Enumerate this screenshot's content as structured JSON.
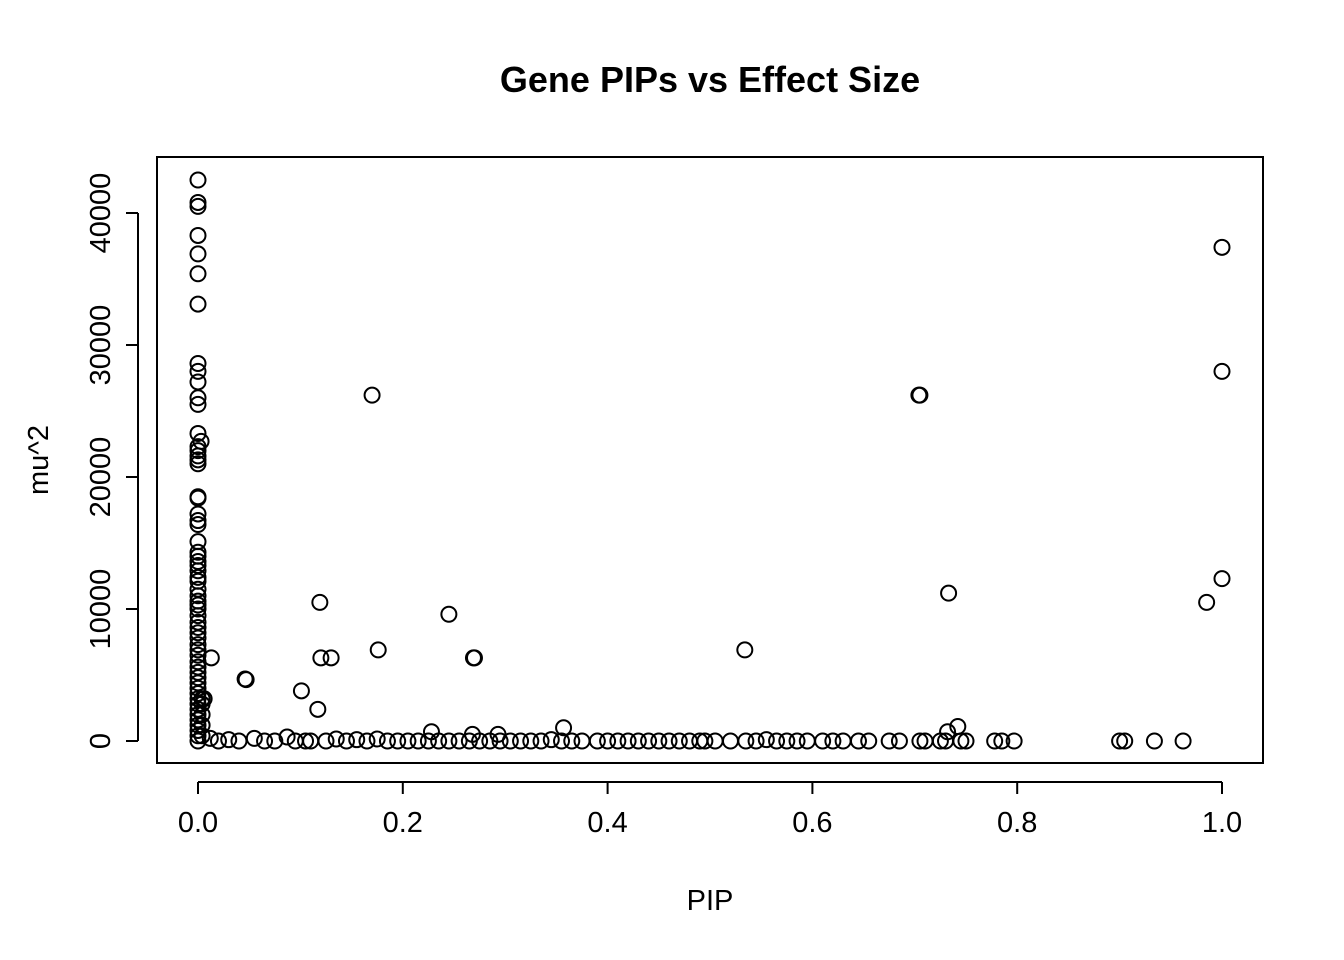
{
  "chart_data": {
    "type": "scatter",
    "title": "Gene PIPs vs Effect Size",
    "xlabel": "PIP",
    "ylabel": "mu^2",
    "xlim": [
      0,
      1
    ],
    "ylim": [
      0,
      42500
    ],
    "xticks": [
      0,
      0.2,
      0.4,
      0.6,
      0.8,
      1.0
    ],
    "xtick_labels": [
      "0.0",
      "0.2",
      "0.4",
      "0.6",
      "0.8",
      "1.0"
    ],
    "yticks": [
      0,
      10000,
      20000,
      30000,
      40000
    ],
    "ytick_labels": [
      "0",
      "10000",
      "20000",
      "30000",
      "40000"
    ],
    "grid": false,
    "legend": "none",
    "series": [
      {
        "values": [
          {
            "x": 0.0,
            "y": 42500
          },
          {
            "x": 0.0,
            "y": 40800
          },
          {
            "x": 0.0,
            "y": 40500
          },
          {
            "x": 0.0,
            "y": 38300
          },
          {
            "x": 0.0,
            "y": 36900
          },
          {
            "x": 0.0,
            "y": 35400
          },
          {
            "x": 0.0,
            "y": 33100
          },
          {
            "x": 0.0,
            "y": 28600
          },
          {
            "x": 0.0,
            "y": 28000
          },
          {
            "x": 0.0,
            "y": 27200
          },
          {
            "x": 0.0,
            "y": 26000
          },
          {
            "x": 0.0,
            "y": 25500
          },
          {
            "x": 0.0,
            "y": 23300
          },
          {
            "x": 0.003,
            "y": 22700
          },
          {
            "x": 0.0,
            "y": 22300
          },
          {
            "x": 0.0,
            "y": 22000
          },
          {
            "x": 0.0,
            "y": 21600
          },
          {
            "x": 0.0,
            "y": 21300
          },
          {
            "x": 0.0,
            "y": 21000
          },
          {
            "x": 0.0,
            "y": 18500
          },
          {
            "x": 0.0,
            "y": 18400
          },
          {
            "x": 0.0,
            "y": 17200
          },
          {
            "x": 0.0,
            "y": 16700
          },
          {
            "x": 0.0,
            "y": 16400
          },
          {
            "x": 0.0,
            "y": 15100
          },
          {
            "x": 0.0,
            "y": 14300
          },
          {
            "x": 0.0,
            "y": 14000
          },
          {
            "x": 0.0,
            "y": 13600
          },
          {
            "x": 0.0,
            "y": 13300
          },
          {
            "x": 0.0,
            "y": 12900
          },
          {
            "x": 0.0,
            "y": 12400
          },
          {
            "x": 0.0,
            "y": 12100
          },
          {
            "x": 0.0,
            "y": 11500
          },
          {
            "x": 0.0,
            "y": 11000
          },
          {
            "x": 0.0,
            "y": 10600
          },
          {
            "x": 0.0,
            "y": 10300
          },
          {
            "x": 0.0,
            "y": 10000
          },
          {
            "x": 0.0,
            "y": 9500
          },
          {
            "x": 0.0,
            "y": 9000
          },
          {
            "x": 0.0,
            "y": 8600
          },
          {
            "x": 0.0,
            "y": 8200
          },
          {
            "x": 0.0,
            "y": 7800
          },
          {
            "x": 0.0,
            "y": 7300
          },
          {
            "x": 0.0,
            "y": 6900
          },
          {
            "x": 0.0,
            "y": 6500
          },
          {
            "x": 0.0,
            "y": 6000
          },
          {
            "x": 0.0,
            "y": 5600
          },
          {
            "x": 0.0,
            "y": 5200
          },
          {
            "x": 0.0,
            "y": 4800
          },
          {
            "x": 0.0,
            "y": 4400
          },
          {
            "x": 0.0,
            "y": 4000
          },
          {
            "x": 0.0,
            "y": 3600
          },
          {
            "x": 0.0,
            "y": 3200
          },
          {
            "x": 0.0,
            "y": 2800
          },
          {
            "x": 0.0,
            "y": 2400
          },
          {
            "x": 0.0,
            "y": 2000
          },
          {
            "x": 0.0,
            "y": 1600
          },
          {
            "x": 0.0,
            "y": 1200
          },
          {
            "x": 0.0,
            "y": 800
          },
          {
            "x": 0.0,
            "y": 400
          },
          {
            "x": 0.0,
            "y": 0
          },
          {
            "x": 0.004,
            "y": 3200
          },
          {
            "x": 0.006,
            "y": 3200
          },
          {
            "x": 0.004,
            "y": 2800
          },
          {
            "x": 0.004,
            "y": 2000
          },
          {
            "x": 0.004,
            "y": 1200
          },
          {
            "x": 0.004,
            "y": 400
          },
          {
            "x": 0.013,
            "y": 6300
          },
          {
            "x": 0.046,
            "y": 4700
          },
          {
            "x": 0.047,
            "y": 4650
          },
          {
            "x": 0.101,
            "y": 3800
          },
          {
            "x": 0.117,
            "y": 2400
          },
          {
            "x": 0.119,
            "y": 10500
          },
          {
            "x": 0.12,
            "y": 6300
          },
          {
            "x": 0.13,
            "y": 6300
          },
          {
            "x": 0.17,
            "y": 26200
          },
          {
            "x": 0.176,
            "y": 6900
          },
          {
            "x": 0.245,
            "y": 9600
          },
          {
            "x": 0.269,
            "y": 6300
          },
          {
            "x": 0.27,
            "y": 6300
          },
          {
            "x": 0.228,
            "y": 700
          },
          {
            "x": 0.268,
            "y": 500
          },
          {
            "x": 0.293,
            "y": 500
          },
          {
            "x": 0.357,
            "y": 1000
          },
          {
            "x": 0.534,
            "y": 6900
          },
          {
            "x": 0.704,
            "y": 26200
          },
          {
            "x": 0.705,
            "y": 26200
          },
          {
            "x": 0.733,
            "y": 11200
          },
          {
            "x": 0.732,
            "y": 700
          },
          {
            "x": 0.742,
            "y": 1100
          },
          {
            "x": 0.985,
            "y": 10500
          },
          {
            "x": 1.0,
            "y": 37400
          },
          {
            "x": 1.0,
            "y": 28000
          },
          {
            "x": 1.0,
            "y": 12300
          },
          {
            "x": 0.012,
            "y": 200
          },
          {
            "x": 0.02,
            "y": 0
          },
          {
            "x": 0.03,
            "y": 100
          },
          {
            "x": 0.04,
            "y": 0
          },
          {
            "x": 0.055,
            "y": 200
          },
          {
            "x": 0.065,
            "y": 0
          },
          {
            "x": 0.075,
            "y": 0
          },
          {
            "x": 0.087,
            "y": 300
          },
          {
            "x": 0.095,
            "y": 0
          },
          {
            "x": 0.105,
            "y": 0
          },
          {
            "x": 0.11,
            "y": 0
          },
          {
            "x": 0.125,
            "y": 0
          },
          {
            "x": 0.135,
            "y": 150
          },
          {
            "x": 0.145,
            "y": 0
          },
          {
            "x": 0.155,
            "y": 100
          },
          {
            "x": 0.165,
            "y": 0
          },
          {
            "x": 0.175,
            "y": 150
          },
          {
            "x": 0.185,
            "y": 0
          },
          {
            "x": 0.195,
            "y": 0
          },
          {
            "x": 0.205,
            "y": 0
          },
          {
            "x": 0.215,
            "y": 0
          },
          {
            "x": 0.225,
            "y": 0
          },
          {
            "x": 0.235,
            "y": 0
          },
          {
            "x": 0.245,
            "y": 0
          },
          {
            "x": 0.255,
            "y": 0
          },
          {
            "x": 0.265,
            "y": 0
          },
          {
            "x": 0.275,
            "y": 0
          },
          {
            "x": 0.285,
            "y": 0
          },
          {
            "x": 0.295,
            "y": 0
          },
          {
            "x": 0.305,
            "y": 0
          },
          {
            "x": 0.315,
            "y": 0
          },
          {
            "x": 0.325,
            "y": 0
          },
          {
            "x": 0.335,
            "y": 0
          },
          {
            "x": 0.345,
            "y": 100
          },
          {
            "x": 0.355,
            "y": 0
          },
          {
            "x": 0.365,
            "y": 0
          },
          {
            "x": 0.375,
            "y": 0
          },
          {
            "x": 0.39,
            "y": 0
          },
          {
            "x": 0.4,
            "y": 0
          },
          {
            "x": 0.41,
            "y": 0
          },
          {
            "x": 0.42,
            "y": 0
          },
          {
            "x": 0.43,
            "y": 0
          },
          {
            "x": 0.44,
            "y": 0
          },
          {
            "x": 0.45,
            "y": 0
          },
          {
            "x": 0.46,
            "y": 0
          },
          {
            "x": 0.47,
            "y": 0
          },
          {
            "x": 0.48,
            "y": 0
          },
          {
            "x": 0.49,
            "y": 0
          },
          {
            "x": 0.495,
            "y": 0
          },
          {
            "x": 0.505,
            "y": 0
          },
          {
            "x": 0.52,
            "y": 0
          },
          {
            "x": 0.535,
            "y": 0
          },
          {
            "x": 0.545,
            "y": 0
          },
          {
            "x": 0.555,
            "y": 100
          },
          {
            "x": 0.565,
            "y": 0
          },
          {
            "x": 0.575,
            "y": 0
          },
          {
            "x": 0.585,
            "y": 0
          },
          {
            "x": 0.595,
            "y": 0
          },
          {
            "x": 0.61,
            "y": 0
          },
          {
            "x": 0.62,
            "y": 0
          },
          {
            "x": 0.63,
            "y": 0
          },
          {
            "x": 0.645,
            "y": 0
          },
          {
            "x": 0.655,
            "y": 0
          },
          {
            "x": 0.675,
            "y": 0
          },
          {
            "x": 0.685,
            "y": 0
          },
          {
            "x": 0.705,
            "y": 0
          },
          {
            "x": 0.71,
            "y": 0
          },
          {
            "x": 0.725,
            "y": 0
          },
          {
            "x": 0.73,
            "y": 0
          },
          {
            "x": 0.745,
            "y": 0
          },
          {
            "x": 0.75,
            "y": 0
          },
          {
            "x": 0.778,
            "y": 0
          },
          {
            "x": 0.785,
            "y": 0
          },
          {
            "x": 0.797,
            "y": 0
          },
          {
            "x": 0.9,
            "y": 0
          },
          {
            "x": 0.905,
            "y": 0
          },
          {
            "x": 0.934,
            "y": 0
          },
          {
            "x": 0.962,
            "y": 0
          }
        ]
      }
    ]
  }
}
